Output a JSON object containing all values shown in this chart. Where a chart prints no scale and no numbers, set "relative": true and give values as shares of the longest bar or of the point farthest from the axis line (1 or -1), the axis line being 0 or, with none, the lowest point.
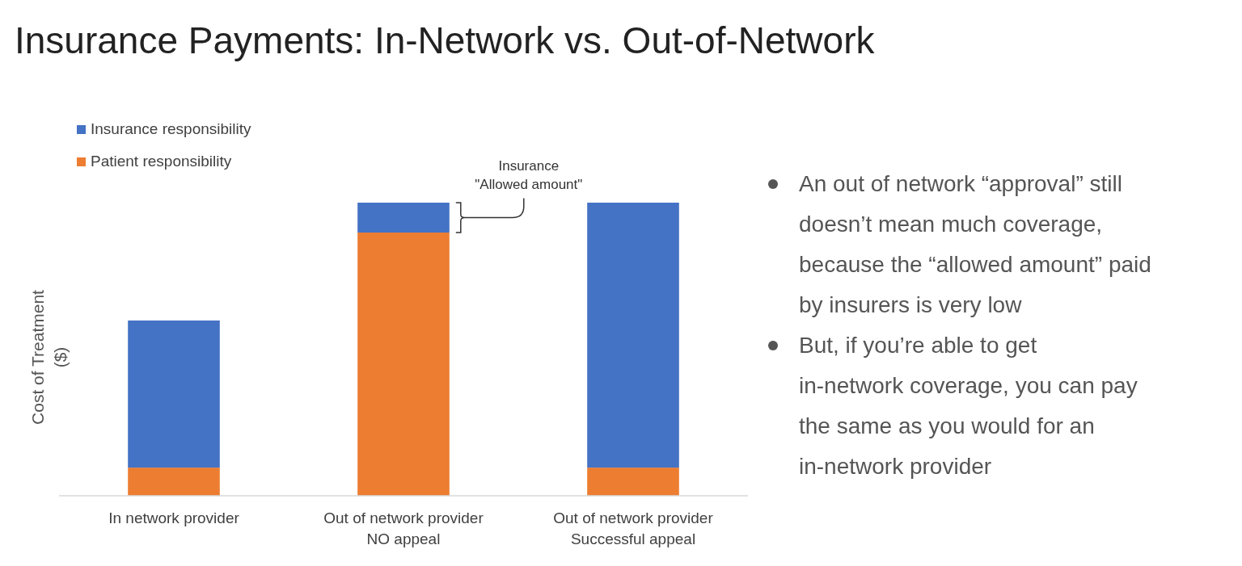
{
  "chart_data": {
    "type": "bar",
    "title": "Insurance Payments: In-Network vs. Out-of-Network",
    "ylabel": "Cost of Treatment\n($)",
    "categories": [
      "In network provider",
      "Out of network provider\nNO appeal",
      "Out of network provider\nSuccessful appeal"
    ],
    "stacked": true,
    "relative": true,
    "legend": "top left",
    "series": [
      {
        "name": "Patient responsibility",
        "color": "#ed7d31",
        "values": [
          0.096,
          0.898,
          0.096
        ]
      },
      {
        "name": "Insurance responsibility",
        "color": "#4472c4",
        "values": [
          0.502,
          0.102,
          0.904
        ]
      }
    ],
    "annotations": [
      "Insurance\n\"Allowed amount\"",
      "An out of network “approval” still doesn’t mean much coverage, because the “allowed amount” paid by insurers is very low",
      "But, if you’re able to get in-network coverage, you can pay the same as you would for an in-network provider"
    ]
  }
}
